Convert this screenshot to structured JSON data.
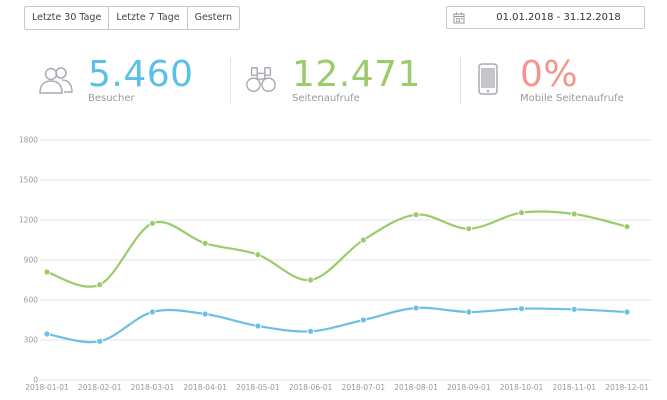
{
  "toolbar": {
    "buttons": [
      "Letzte 30 Tage",
      "Letzte 7 Tage",
      "Gestern"
    ],
    "date_range": "01.01.2018 - 31.12.2018"
  },
  "stats": {
    "visitors": {
      "value": "5.460",
      "label": "Besucher",
      "color": "#5bc0e8",
      "icon": "users-icon"
    },
    "pageviews": {
      "value": "12.471",
      "label": "Seitenaufrufe",
      "color": "#9ccb6b",
      "icon": "binoculars-icon"
    },
    "mobile": {
      "value": "0%",
      "label": "Mobile Seitenaufrufe",
      "color": "#f4948a",
      "icon": "smartphone-icon"
    }
  },
  "chart_data": {
    "type": "line",
    "x": [
      "2018-01-01",
      "2018-02-01",
      "2018-03-01",
      "2018-04-01",
      "2018-05-01",
      "2018-06-01",
      "2018-07-01",
      "2018-08-01",
      "2018-09-01",
      "2018-10-01",
      "2018-11-01",
      "2018-12-01"
    ],
    "y_ticks": [
      0,
      300,
      600,
      900,
      1200,
      1500,
      1800
    ],
    "ylim": [
      0,
      1800
    ],
    "grid": true,
    "series": [
      {
        "color": "#9ccb6b",
        "values": [
          810,
          715,
          1175,
          1025,
          940,
          750,
          1050,
          1240,
          1135,
          1255,
          1245,
          1150
        ]
      },
      {
        "color": "#6cc0e6",
        "values": [
          345,
          290,
          510,
          495,
          405,
          365,
          450,
          540,
          510,
          535,
          530,
          510
        ]
      }
    ]
  }
}
